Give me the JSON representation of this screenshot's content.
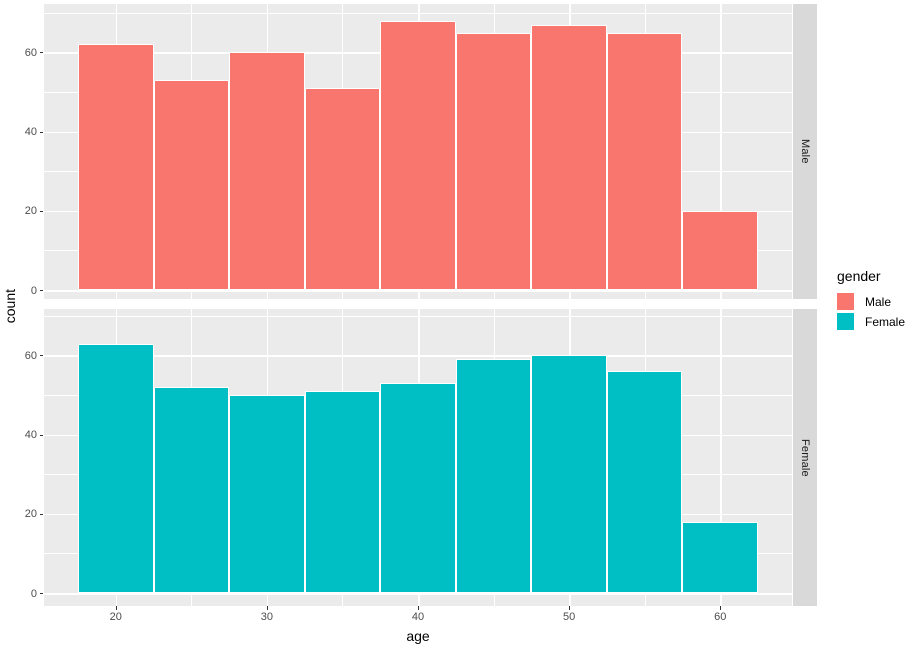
{
  "chart_data": {
    "type": "bar",
    "subtype": "faceted-histogram",
    "title": "",
    "xlabel": "age",
    "ylabel": "count",
    "bin_centers": [
      20,
      25,
      30,
      35,
      40,
      45,
      50,
      55,
      60
    ],
    "bin_width": 5,
    "x_ticks": [
      20,
      30,
      40,
      50,
      60
    ],
    "x_minor_ticks": [
      25,
      35,
      45,
      55
    ],
    "y_ticks": [
      0,
      20,
      40,
      60
    ],
    "y_minor_ticks": [
      10,
      30,
      50,
      70
    ],
    "xlim": [
      15.25,
      64.75
    ],
    "ylim": [
      -3.4,
      71.4
    ],
    "grid": true,
    "legend_position": "right",
    "facets": [
      {
        "label": "Male",
        "color": "#F8766D",
        "values": [
          62,
          53,
          60,
          51,
          68,
          65,
          67,
          65,
          20
        ]
      },
      {
        "label": "Female",
        "color": "#00BFC4",
        "values": [
          63,
          52,
          50,
          51,
          53,
          59,
          60,
          56,
          18
        ]
      }
    ],
    "legend": {
      "title": "gender",
      "entries": [
        {
          "label": "Male",
          "color": "#F8766D"
        },
        {
          "label": "Female",
          "color": "#00BFC4"
        }
      ]
    }
  },
  "colors": {
    "panel_background": "#EBEBEB",
    "strip_background": "#D9D9D9",
    "gridline": "#FFFFFF",
    "tick_text": "#4D4D4D",
    "axis_title_text": "#000000",
    "bar_outline": "#FFFFFF"
  }
}
